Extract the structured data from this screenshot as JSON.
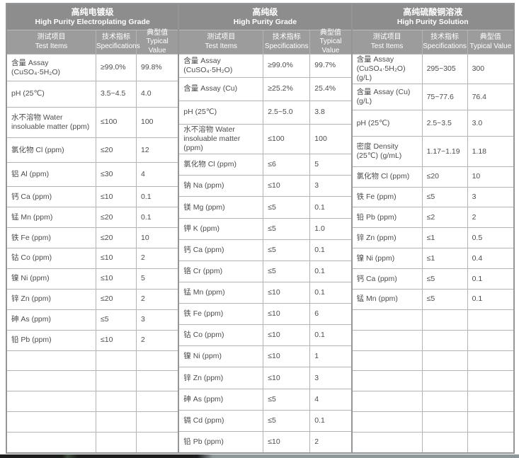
{
  "page": {
    "background": "#ffffff",
    "edge_strip": {
      "left_color": "#1e1e1e",
      "right_color": "#8d9699",
      "accent": "#3a4a3a"
    }
  },
  "table": {
    "frame_color": "#909699",
    "header_bg": "#8d8d8d",
    "subheader_bg": "#9c9c9c",
    "grid_color": "#b3b3b3",
    "text_color": "#4d4d4d",
    "header_text_color": "#ffffff",
    "sections": [
      {
        "title_zh": "高纯电镀级",
        "title_en": "High Purity Electroplating Grade",
        "columns": [
          {
            "zh": "测试项目",
            "en": "Test Items"
          },
          {
            "zh": "技术指标",
            "en": "Specifications"
          },
          {
            "zh": "典型值",
            "en": "Typical Value"
          }
        ],
        "rows": [
          {
            "item": "含量 Assay (CuSO₄·5H₂O)",
            "spec": "≥99.0%",
            "value": "99.8%"
          },
          {
            "item": "pH (25℃)",
            "spec": "3.5~4.5",
            "value": "4.0"
          },
          {
            "item": "水不溶物 Water insoluable matter (ppm)",
            "spec": "≤100",
            "value": "100"
          },
          {
            "item": "氯化物 Cl (ppm)",
            "spec": "≤20",
            "value": "12"
          },
          {
            "item": "铝 Al (ppm)",
            "spec": "≤30",
            "value": "4"
          },
          {
            "item": "钙 Ca (ppm)",
            "spec": "≤10",
            "value": "0.1"
          },
          {
            "item": "锰 Mn (ppm)",
            "spec": "≤20",
            "value": "0.1"
          },
          {
            "item": "铁 Fe (ppm)",
            "spec": "≤20",
            "value": "10"
          },
          {
            "item": "钴 Co (ppm)",
            "spec": "≤10",
            "value": "2"
          },
          {
            "item": "镍 Ni (ppm)",
            "spec": "≤10",
            "value": "5"
          },
          {
            "item": "锌 Zn (ppm)",
            "spec": "≤20",
            "value": "2"
          },
          {
            "item": "砷 As (ppm)",
            "spec": "≤5",
            "value": "3"
          },
          {
            "item": "铅 Pb (ppm)",
            "spec": "≤10",
            "value": "2"
          }
        ],
        "empty_rows": 5
      },
      {
        "title_zh": "高纯级",
        "title_en": "High Purity Grade",
        "columns": [
          {
            "zh": "测试项目",
            "en": "Test Items"
          },
          {
            "zh": "技术指标",
            "en": "Specifications"
          },
          {
            "zh": "典型值",
            "en": "Typical Value"
          }
        ],
        "rows": [
          {
            "item": "含量 Assay (CuSO₄·5H₂O)",
            "spec": "≥99.0%",
            "value": "99.7%"
          },
          {
            "item": "含量 Assay (Cu)",
            "spec": "≥25.2%",
            "value": "25.4%"
          },
          {
            "item": "pH (25℃)",
            "spec": "2.5~5.0",
            "value": "3.8"
          },
          {
            "item": "水不溶物 Water insoluable matter (ppm)",
            "spec": "≤100",
            "value": "100"
          },
          {
            "item": "氯化物 Cl (ppm)",
            "spec": "≤6",
            "value": "5"
          },
          {
            "item": "钠 Na (ppm)",
            "spec": "≤10",
            "value": "3"
          },
          {
            "item": "镁 Mg (ppm)",
            "spec": "≤5",
            "value": "0.1"
          },
          {
            "item": "钾 K (ppm)",
            "spec": "≤5",
            "value": "1.0"
          },
          {
            "item": "钙 Ca (ppm)",
            "spec": "≤5",
            "value": "0.1"
          },
          {
            "item": "铬 Cr (ppm)",
            "spec": "≤5",
            "value": "0.1"
          },
          {
            "item": "锰 Mn (ppm)",
            "spec": "≤10",
            "value": "0.1"
          },
          {
            "item": "铁 Fe (ppm)",
            "spec": "≤10",
            "value": "6"
          },
          {
            "item": "钴 Co (ppm)",
            "spec": "≤10",
            "value": "0.1"
          },
          {
            "item": "镍 Ni (ppm)",
            "spec": "≤10",
            "value": "1"
          },
          {
            "item": "锌 Zn (ppm)",
            "spec": "≤10",
            "value": "3"
          },
          {
            "item": "砷 As (ppm)",
            "spec": "≤5",
            "value": "4"
          },
          {
            "item": "镉 Cd (ppm)",
            "spec": "≤5",
            "value": "0.1"
          },
          {
            "item": "铅 Pb (ppm)",
            "spec": "≤10",
            "value": "2"
          }
        ],
        "empty_rows": 0
      },
      {
        "title_zh": "高纯硫酸铜溶液",
        "title_en": "High Purity Solution",
        "columns": [
          {
            "zh": "测试项目",
            "en": "Test Items"
          },
          {
            "zh": "技术指标",
            "en": "Specifications"
          },
          {
            "zh": "典型值",
            "en": "Typical Value"
          }
        ],
        "rows": [
          {
            "item": "含量 Assay (CuSO₄·5H₂O) (g/L)",
            "spec": "295~305",
            "value": "300"
          },
          {
            "item": "含量 Assay (Cu) (g/L)",
            "spec": "75~77.6",
            "value": "76.4"
          },
          {
            "item": "pH (25℃)",
            "spec": "2.5~3.5",
            "value": "3.0"
          },
          {
            "item": "密度 Density (25℃) (g/mL)",
            "spec": "1.17~1.19",
            "value": "1.18"
          },
          {
            "item": "氯化物 Cl (ppm)",
            "spec": "≤20",
            "value": "10"
          },
          {
            "item": "铁 Fe (ppm)",
            "spec": "≤5",
            "value": "3"
          },
          {
            "item": "铅 Pb (ppm)",
            "spec": "≤2",
            "value": "2"
          },
          {
            "item": "锌 Zn (ppm)",
            "spec": "≤1",
            "value": "0.5"
          },
          {
            "item": "镍 Ni (ppm)",
            "spec": "≤1",
            "value": "0.4"
          },
          {
            "item": "钙 Ca (ppm)",
            "spec": "≤5",
            "value": "0.1"
          },
          {
            "item": "锰 Mn (ppm)",
            "spec": "≤5",
            "value": "0.1"
          }
        ],
        "empty_rows": 7
      }
    ]
  }
}
